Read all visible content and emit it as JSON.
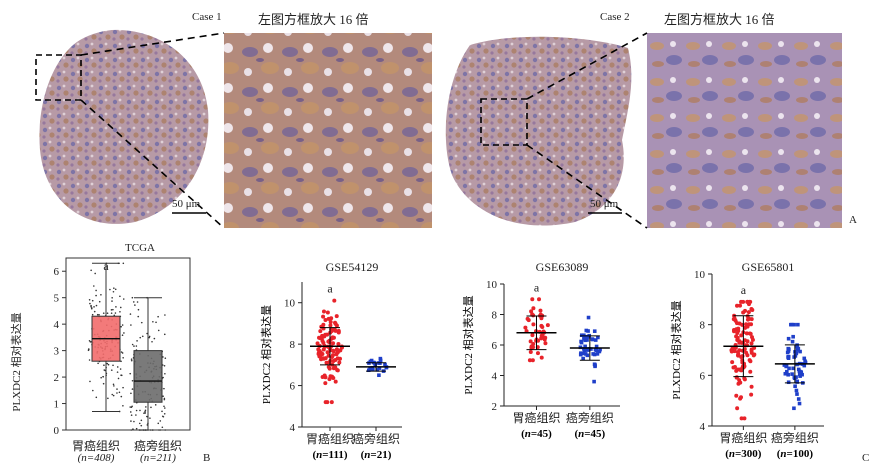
{
  "panel_a": {
    "case1_label": "Case 1",
    "case2_label": "Case 2",
    "zoom_caption": "左图方框放大 16 倍",
    "scalebar_label": "50 μm",
    "letter": "A"
  },
  "panel_b": {
    "letter": "B",
    "title": "TCGA",
    "ylabel": "PLXDC2 相对表达量",
    "sig_mark": "a",
    "groups": [
      {
        "name": "胃癌组织",
        "n_label": "(n=408)"
      },
      {
        "name": "癌旁组织",
        "n_label": "(n=211)"
      }
    ]
  },
  "panel_c": {
    "letter": "C",
    "ylabel": "PLXDC2 相对表达量",
    "sig_mark": "a"
  },
  "colors": {
    "tumor": "#e8232a",
    "normal_gse": "#1f3fc9",
    "box_tumor": "#f26b6b",
    "box_normal": "#6b6b6b"
  },
  "chart_data": [
    {
      "type": "box",
      "title": "TCGA",
      "ylabel": "PLXDC2 相对表达量",
      "ylim": [
        0,
        6.5
      ],
      "yticks": [
        0,
        1,
        2,
        3,
        4,
        5,
        6
      ],
      "categories": [
        "胃癌组织",
        "癌旁组织"
      ],
      "n": [
        408,
        211
      ],
      "boxes": [
        {
          "q1": 2.6,
          "median": 3.45,
          "q3": 4.3,
          "whisker_low": 0.7,
          "whisker_high": 6.3
        },
        {
          "q1": 1.05,
          "median": 1.85,
          "q3": 3.0,
          "whisker_low": 0.0,
          "whisker_high": 5.0
        }
      ]
    },
    {
      "type": "scatter",
      "title": "GSE54129",
      "ylabel": "PLXDC2 相对表达量",
      "ylim": [
        4,
        11
      ],
      "yticks": [
        4,
        6,
        8,
        10
      ],
      "categories": [
        "胃癌组织",
        "癌旁组织"
      ],
      "n": [
        111,
        21
      ],
      "means": [
        7.9,
        6.9
      ],
      "sd": [
        0.9,
        0.2
      ],
      "range": [
        [
          5.2,
          10.1
        ],
        [
          6.5,
          7.3
        ]
      ]
    },
    {
      "type": "scatter",
      "title": "GSE63089",
      "ylabel": "PLXDC2 相对表达量",
      "ylim": [
        2,
        10
      ],
      "yticks": [
        2,
        4,
        6,
        8,
        10
      ],
      "categories": [
        "胃癌组织",
        "癌旁组织"
      ],
      "n": [
        45,
        45
      ],
      "means": [
        6.8,
        5.8
      ],
      "sd": [
        1.1,
        0.8
      ],
      "range": [
        [
          5.0,
          9.0
        ],
        [
          3.6,
          7.8
        ]
      ]
    },
    {
      "type": "scatter",
      "title": "GSE65801",
      "ylabel": "PLXDC2 相对表达量",
      "ylim": [
        4,
        10
      ],
      "yticks": [
        4,
        6,
        8,
        10
      ],
      "categories": [
        "胃癌组织",
        "癌旁组织"
      ],
      "n": [
        300,
        100
      ],
      "means": [
        7.15,
        6.45
      ],
      "sd": [
        1.2,
        0.75
      ],
      "range": [
        [
          4.3,
          8.9
        ],
        [
          4.7,
          8.0
        ]
      ]
    }
  ]
}
